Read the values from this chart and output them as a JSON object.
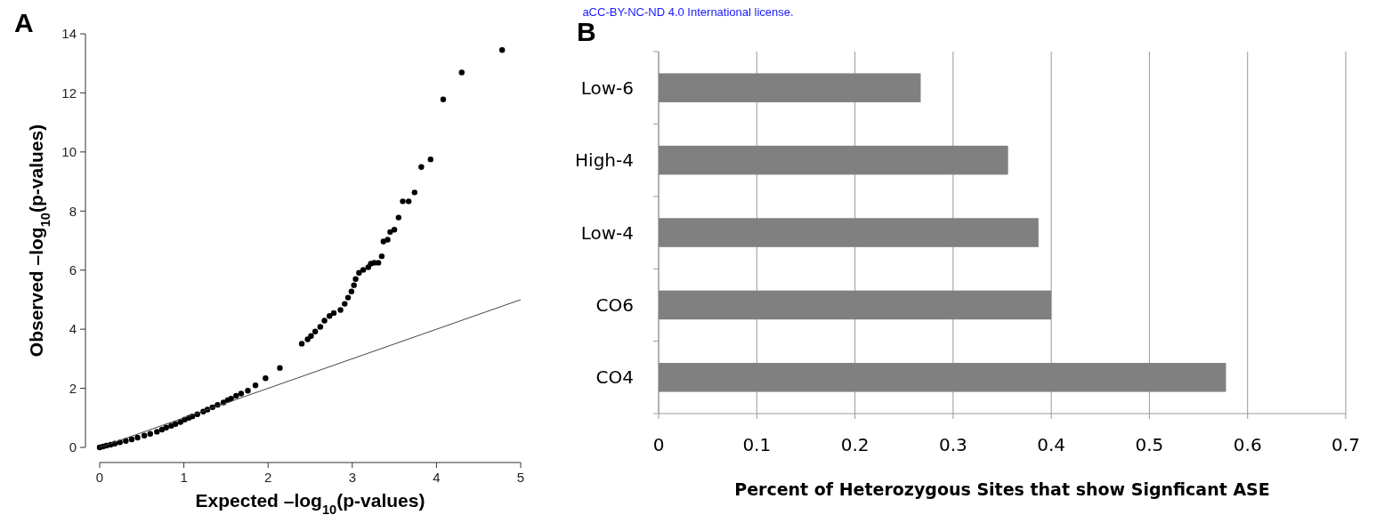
{
  "chart_data": [
    {
      "type": "scatter",
      "title": "A",
      "xlabel": "Expected –log$_{10}$(p-values)",
      "ylabel": "Observed –log$_{10}$(p-values)",
      "xlim": [
        0,
        5
      ],
      "ylim": [
        0,
        14
      ],
      "xticks": [
        0,
        1,
        2,
        3,
        4,
        5
      ],
      "yticks": [
        0,
        2,
        4,
        6,
        8,
        10,
        12,
        14
      ],
      "annotations": [
        "aCC-BY-NC-ND 4.0 International license."
      ],
      "series": [
        {
          "type": "scatter",
          "marker": "circle",
          "color": "#000000",
          "x": [
            0,
            0.04,
            0.08,
            0.13,
            0.18,
            0.24,
            0.31,
            0.38,
            0.45,
            0.53,
            0.6,
            0.68,
            0.74,
            0.79,
            0.85,
            0.9,
            0.96,
            1.01,
            1.06,
            1.1,
            1.16,
            1.23,
            1.28,
            1.34,
            1.4,
            1.47,
            1.52,
            1.56,
            1.62,
            1.68,
            1.76,
            1.85,
            1.97,
            2.14,
            2.4,
            2.47,
            2.51,
            2.56,
            2.62,
            2.67,
            2.73,
            2.78,
            2.86,
            2.91,
            2.95,
            2.99,
            3.02,
            3.04,
            3.08,
            3.13,
            3.19,
            3.22,
            3.26,
            3.31,
            3.35,
            3.37,
            3.42,
            3.45,
            3.5,
            3.55,
            3.6,
            3.67,
            3.74,
            3.82,
            3.93,
            4.08,
            4.3,
            4.78
          ],
          "values": [
            0,
            0.03,
            0.06,
            0.09,
            0.13,
            0.17,
            0.22,
            0.27,
            0.33,
            0.4,
            0.46,
            0.53,
            0.6,
            0.67,
            0.73,
            0.79,
            0.86,
            0.94,
            1.0,
            1.05,
            1.12,
            1.21,
            1.28,
            1.36,
            1.44,
            1.52,
            1.6,
            1.65,
            1.75,
            1.82,
            1.92,
            2.1,
            2.34,
            2.69,
            3.51,
            3.66,
            3.77,
            3.92,
            4.08,
            4.29,
            4.45,
            4.55,
            4.65,
            4.86,
            5.07,
            5.28,
            5.49,
            5.7,
            5.91,
            6.01,
            6.1,
            6.22,
            6.25,
            6.25,
            6.47,
            6.97,
            7.03,
            7.29,
            7.37,
            7.78,
            8.33,
            8.33,
            8.63,
            9.49,
            9.75,
            11.78,
            12.69,
            13.45
          ]
        },
        {
          "type": "line",
          "marker": "none",
          "color": "#444444",
          "x": [
            0,
            5
          ],
          "values": [
            0,
            5
          ]
        }
      ]
    },
    {
      "type": "bar",
      "orientation": "horizontal",
      "title": "B",
      "xlabel": "Percent of Heterozygous Sites that show Signficant ASE",
      "categories": [
        "Low-6",
        "High-4",
        "Low-4",
        "CO6",
        "CO4"
      ],
      "values": [
        0.267,
        0.356,
        0.387,
        0.4,
        0.578
      ],
      "color": "#808080",
      "xlim": [
        0,
        0.7
      ],
      "xticks": [
        0,
        0.1,
        0.2,
        0.3,
        0.4,
        0.5,
        0.6,
        0.7
      ],
      "grid": "x"
    }
  ]
}
